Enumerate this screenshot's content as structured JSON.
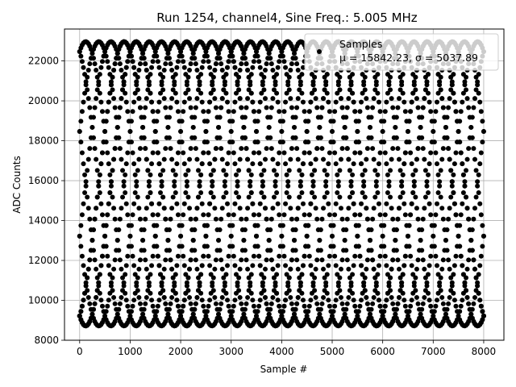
{
  "chart_data": {
    "type": "scatter",
    "title": "Run 1254, channel4, Sine Freq.: 5.005 MHz",
    "xlabel": "Sample #",
    "ylabel": "ADC Counts",
    "xlim": [
      -300,
      8400
    ],
    "ylim": [
      8000,
      23600
    ],
    "xticks": [
      0,
      1000,
      2000,
      3000,
      4000,
      5000,
      6000,
      7000,
      8000
    ],
    "xtick_labels": [
      "0",
      "1000",
      "2000",
      "3000",
      "4000",
      "5000",
      "6000",
      "7000",
      "8000"
    ],
    "yticks": [
      8000,
      10000,
      12000,
      14000,
      16000,
      18000,
      20000,
      22000
    ],
    "ytick_labels": [
      "8000",
      "10000",
      "12000",
      "14000",
      "16000",
      "18000",
      "20000",
      "22000"
    ],
    "grid": true,
    "legend_position": "top-right",
    "marker_color": "#000000",
    "series": [
      {
        "name": "Samples",
        "legend_stats": "μ = 15842.23, σ = 5037.89",
        "model": "sine",
        "mean": 15842.23,
        "amplitude": 7125,
        "period_samples": 2000,
        "x_range": [
          0,
          8000
        ],
        "phase_offsets_samples": [
          -1120,
          -880,
          -620,
          -380,
          -120,
          120,
          380,
          620,
          880,
          1120
        ]
      }
    ]
  }
}
